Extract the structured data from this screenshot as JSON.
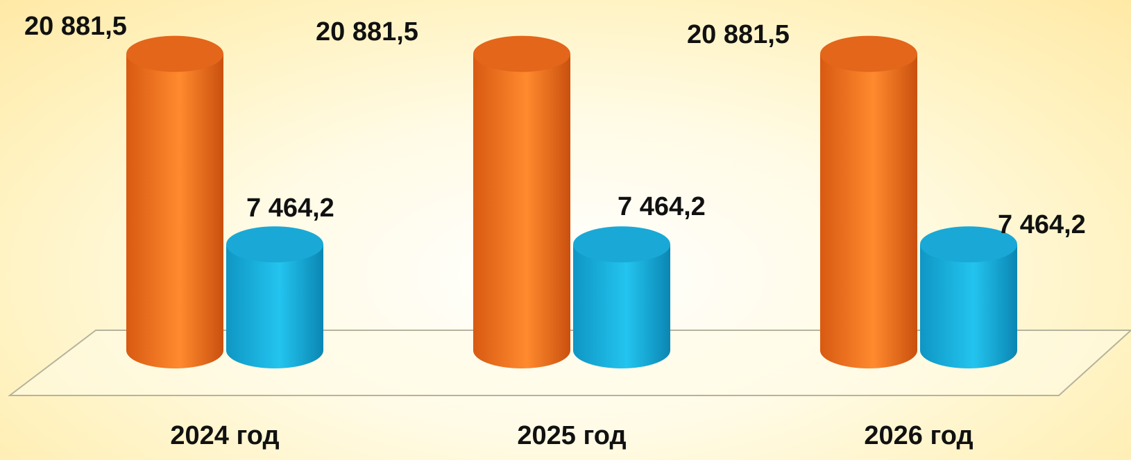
{
  "chart_data": {
    "type": "bar",
    "style": "3d-cylinder",
    "categories": [
      "2024 год",
      "2025 год",
      "2026 год"
    ],
    "series": [
      {
        "values": [
          20881.5,
          20881.5,
          20881.5
        ],
        "labels": [
          "20 881,5",
          "20 881,5",
          "20 881,5"
        ],
        "color": "#f47a1f"
      },
      {
        "values": [
          7464.2,
          7464.2,
          7464.2
        ],
        "labels": [
          "7 464,2",
          "7 464,2",
          "7 464,2"
        ],
        "color": "#19b6e3"
      }
    ],
    "ylim": [
      0,
      21500
    ],
    "axes_visible": false,
    "grid": false,
    "legend": "none"
  }
}
